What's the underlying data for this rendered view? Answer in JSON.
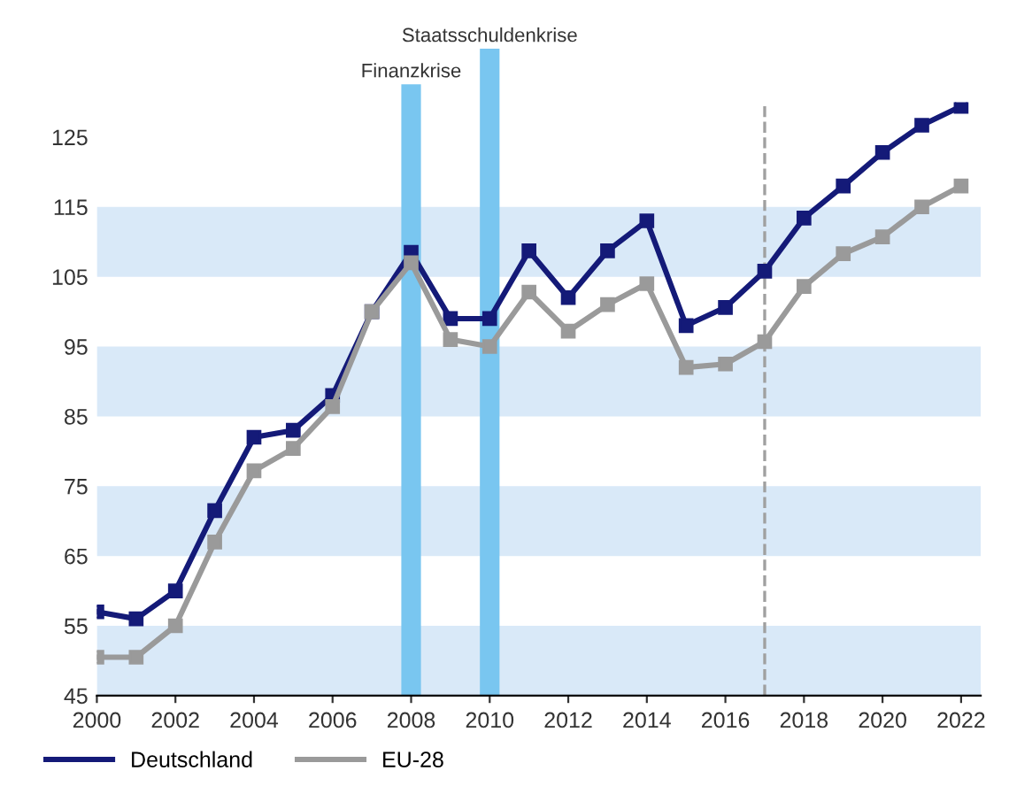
{
  "chart_data": {
    "type": "line",
    "x": [
      2000,
      2001,
      2002,
      2003,
      2004,
      2005,
      2006,
      2007,
      2008,
      2009,
      2010,
      2011,
      2012,
      2013,
      2014,
      2015,
      2016,
      2017,
      2018,
      2019,
      2020,
      2021,
      2022
    ],
    "series": [
      {
        "name": "Deutschland",
        "color": "#141a78",
        "values": [
          57,
          56,
          60,
          71.5,
          82,
          83,
          88,
          100,
          108.5,
          99,
          99,
          108.7,
          102,
          108.7,
          113,
          98,
          100.6,
          105.8,
          113.4,
          118,
          122.8,
          126.7,
          129.4
        ]
      },
      {
        "name": "EU-28",
        "color": "#9a9a9a",
        "values": [
          50.5,
          50.5,
          55,
          67,
          77.2,
          80.4,
          86.4,
          100,
          107,
          96,
          95,
          102.8,
          97.2,
          101,
          104,
          92,
          92.5,
          95.7,
          103.6,
          108.3,
          110.7,
          115,
          118
        ]
      }
    ],
    "xlim": [
      2000,
      2022.5
    ],
    "xticks": [
      2000,
      2002,
      2004,
      2006,
      2008,
      2010,
      2012,
      2014,
      2016,
      2018,
      2020,
      2022
    ],
    "ylim": [
      45,
      130
    ],
    "yticks": [
      45,
      55,
      65,
      75,
      85,
      95,
      105,
      115,
      125
    ],
    "bands": [
      {
        "axis": "y",
        "from": 45,
        "to": 55,
        "color": "#d9e9f8"
      },
      {
        "axis": "y",
        "from": 65,
        "to": 75,
        "color": "#d9e9f8"
      },
      {
        "axis": "y",
        "from": 85,
        "to": 95,
        "color": "#d9e9f8"
      },
      {
        "axis": "y",
        "from": 105,
        "to": 115,
        "color": "#d9e9f8"
      },
      {
        "axis": "x",
        "from": 2007.75,
        "to": 2008.25,
        "label": "Finanzkrise",
        "color": "#79c6f0"
      },
      {
        "axis": "x",
        "from": 2009.75,
        "to": 2010.25,
        "label": "Staatsschuldenkrise",
        "color": "#79c6f0"
      }
    ],
    "ref_lines": [
      {
        "axis": "x",
        "value": 2017,
        "color": "#a0a0a0",
        "line_style": "dashed"
      }
    ],
    "marker": "square",
    "line_style": "solid",
    "legend": "bottom left",
    "grid": false
  }
}
